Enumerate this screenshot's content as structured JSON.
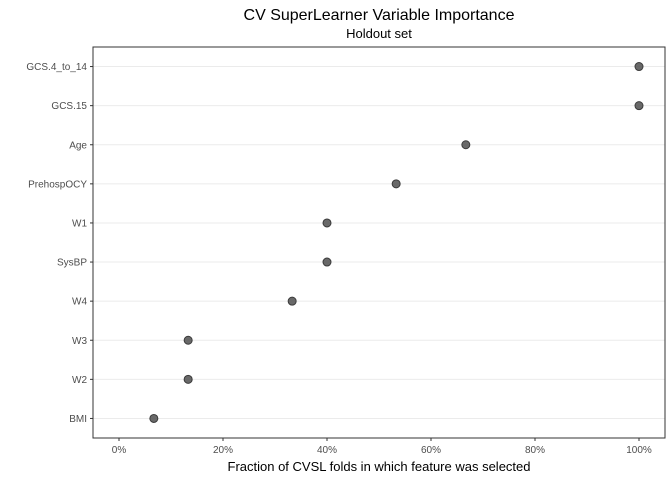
{
  "chart_data": {
    "type": "scatter",
    "title": "CV SuperLearner Variable Importance",
    "subtitle": "Holdout set",
    "xlabel": "Fraction of CVSL folds in which feature was selected",
    "ylabel": "",
    "xlim": [
      -0.05,
      1.05
    ],
    "x_ticks": [
      0,
      0.2,
      0.4,
      0.6,
      0.8,
      1.0
    ],
    "x_tick_labels": [
      "0%",
      "20%",
      "40%",
      "60%",
      "80%",
      "100%"
    ],
    "grid": true,
    "categories": [
      "GCS.4_to_14",
      "GCS.15",
      "Age",
      "PrehospOCY",
      "W1",
      "SysBP",
      "W4",
      "W3",
      "W2",
      "BMI"
    ],
    "values": [
      1.0,
      1.0,
      0.667,
      0.533,
      0.4,
      0.4,
      0.333,
      0.133,
      0.133,
      0.067
    ],
    "point_color": "#595959"
  }
}
